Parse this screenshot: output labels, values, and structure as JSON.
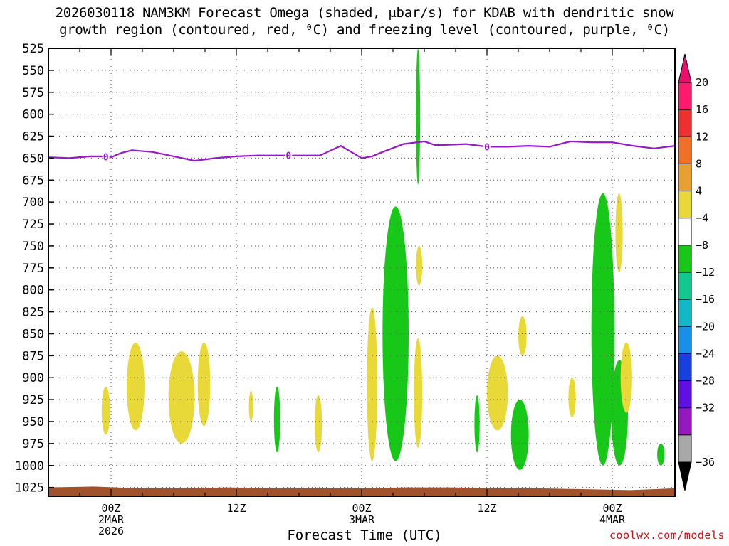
{
  "chart_data": {
    "type": "heatmap",
    "title": "2026030118 NAM3KM Forecast Omega (shaded, μbar/s) for KDAB with dendritic snow",
    "subtitle": "growth region (contoured, red, ⁰C) and freezing level (contoured, purple, ⁰C)",
    "xlabel": "Forecast Time (UTC)",
    "credit": "coolwx.com/models",
    "y_axis": {
      "ticks": [
        525,
        550,
        575,
        600,
        625,
        650,
        675,
        700,
        725,
        750,
        775,
        800,
        825,
        850,
        875,
        900,
        925,
        950,
        975,
        1000,
        1025
      ],
      "tick_labels": [
        "525",
        "550",
        "575",
        "600",
        "625",
        "650",
        "675",
        "700",
        "725",
        "750",
        "775",
        "800",
        "825",
        "850",
        "875",
        "900",
        "925",
        "950",
        "975",
        "1000",
        "1025"
      ],
      "range": [
        525,
        1035
      ]
    },
    "x_axis": {
      "range_hours": [
        -6,
        54
      ],
      "ticks": [
        {
          "hour": 0,
          "line1": "00Z",
          "line2": "2MAR",
          "line3": "2026"
        },
        {
          "hour": 12,
          "line1": "12Z",
          "line2": "",
          "line3": ""
        },
        {
          "hour": 24,
          "line1": "00Z",
          "line2": "3MAR",
          "line3": ""
        },
        {
          "hour": 36,
          "line1": "12Z",
          "line2": "",
          "line3": ""
        },
        {
          "hour": 48,
          "line1": "00Z",
          "line2": "4MAR",
          "line3": ""
        }
      ]
    },
    "grid": "dotted",
    "colorbar": {
      "labels": [
        "20",
        "16",
        "12",
        "8",
        "4",
        "−4",
        "−8",
        "−12",
        "−16",
        "−20",
        "−24",
        "−28",
        "−32",
        "−36"
      ],
      "colors": [
        "#ff1c6c",
        "#f03030",
        "#f07028",
        "#e8a030",
        "#e8d838",
        "#ffffff",
        "#18c818",
        "#10c890",
        "#10b8c8",
        "#1890e8",
        "#1840e0",
        "#6010e0",
        "#9818c0",
        "#a8a8a8"
      ]
    },
    "freezing_level": {
      "label": "0",
      "color": "#9818c8",
      "hours": [
        -6,
        -4,
        -2,
        -1,
        0,
        1,
        2,
        4,
        6,
        8,
        10,
        12,
        14,
        16,
        18,
        20,
        22,
        24,
        25,
        26,
        28,
        30,
        31,
        32,
        34,
        36,
        38,
        40,
        42,
        44,
        46,
        48,
        50,
        52,
        54
      ],
      "pressure_mb": [
        649,
        650,
        648,
        648,
        649,
        644,
        641,
        643,
        648,
        653,
        650,
        648,
        647,
        647,
        647,
        647,
        636,
        650,
        648,
        643,
        634,
        631,
        635,
        635,
        634,
        637,
        637,
        636,
        637,
        631,
        632,
        632,
        636,
        639,
        636
      ]
    },
    "omega_regions": [
      {
        "color": "#e8d838",
        "value": 4,
        "hour_min": -0.9,
        "hour_max": -0.1,
        "p_min": 910,
        "p_max": 965
      },
      {
        "color": "#e8d838",
        "value": 4,
        "hour_min": 1.5,
        "hour_max": 3.2,
        "p_min": 860,
        "p_max": 960
      },
      {
        "color": "#e8d838",
        "value": 4,
        "hour_min": 5.5,
        "hour_max": 8.0,
        "p_min": 870,
        "p_max": 975
      },
      {
        "color": "#e8d838",
        "value": 4,
        "hour_min": 8.3,
        "hour_max": 9.5,
        "p_min": 860,
        "p_max": 955
      },
      {
        "color": "#e8d838",
        "value": 4,
        "hour_min": 13.2,
        "hour_max": 13.6,
        "p_min": 915,
        "p_max": 950
      },
      {
        "color": "#18c818",
        "value": -4,
        "hour_min": 15.6,
        "hour_max": 16.2,
        "p_min": 910,
        "p_max": 985
      },
      {
        "color": "#e8d838",
        "value": 4,
        "hour_min": 19.5,
        "hour_max": 20.2,
        "p_min": 920,
        "p_max": 985
      },
      {
        "color": "#e8d838",
        "value": 4,
        "hour_min": 24.5,
        "hour_max": 25.5,
        "p_min": 820,
        "p_max": 995
      },
      {
        "color": "#18c818",
        "value": -8,
        "hour_min": 26.0,
        "hour_max": 28.5,
        "p_min": 705,
        "p_max": 995
      },
      {
        "color": "#e8d838",
        "value": 4,
        "hour_min": 29.0,
        "hour_max": 29.8,
        "p_min": 855,
        "p_max": 980
      },
      {
        "color": "#e8d838",
        "value": 4,
        "hour_min": 29.2,
        "hour_max": 29.8,
        "p_min": 750,
        "p_max": 795
      },
      {
        "color": "#18c818",
        "value": -4,
        "hour_min": 29.2,
        "hour_max": 29.6,
        "p_min": 525,
        "p_max": 680
      },
      {
        "color": "#18c818",
        "value": -4,
        "hour_min": 34.8,
        "hour_max": 35.3,
        "p_min": 920,
        "p_max": 985
      },
      {
        "color": "#e8d838",
        "value": 4,
        "hour_min": 36.0,
        "hour_max": 38.0,
        "p_min": 875,
        "p_max": 960
      },
      {
        "color": "#18c818",
        "value": -8,
        "hour_min": 38.3,
        "hour_max": 40.0,
        "p_min": 925,
        "p_max": 1005
      },
      {
        "color": "#e8d838",
        "value": 4,
        "hour_min": 39.0,
        "hour_max": 39.8,
        "p_min": 830,
        "p_max": 875
      },
      {
        "color": "#e8d838",
        "value": 4,
        "hour_min": 43.8,
        "hour_max": 44.5,
        "p_min": 900,
        "p_max": 945
      },
      {
        "color": "#18c818",
        "value": -8,
        "hour_min": 46.0,
        "hour_max": 48.2,
        "p_min": 690,
        "p_max": 1000
      },
      {
        "color": "#18c818",
        "value": -8,
        "hour_min": 47.9,
        "hour_max": 49.5,
        "p_min": 880,
        "p_max": 1000
      },
      {
        "color": "#e8d838",
        "value": 4,
        "hour_min": 48.3,
        "hour_max": 49.0,
        "p_min": 690,
        "p_max": 780
      },
      {
        "color": "#e8d838",
        "value": 4,
        "hour_min": 48.8,
        "hour_max": 49.9,
        "p_min": 860,
        "p_max": 940
      },
      {
        "color": "#18c818",
        "value": -4,
        "hour_min": 52.3,
        "hour_max": 53.0,
        "p_min": 975,
        "p_max": 1000
      }
    ],
    "surface_pressure_mb": [
      1025,
      1024,
      1026,
      1026,
      1025,
      1026,
      1026,
      1026,
      1025,
      1025,
      1026,
      1026,
      1027,
      1028,
      1026
    ]
  }
}
